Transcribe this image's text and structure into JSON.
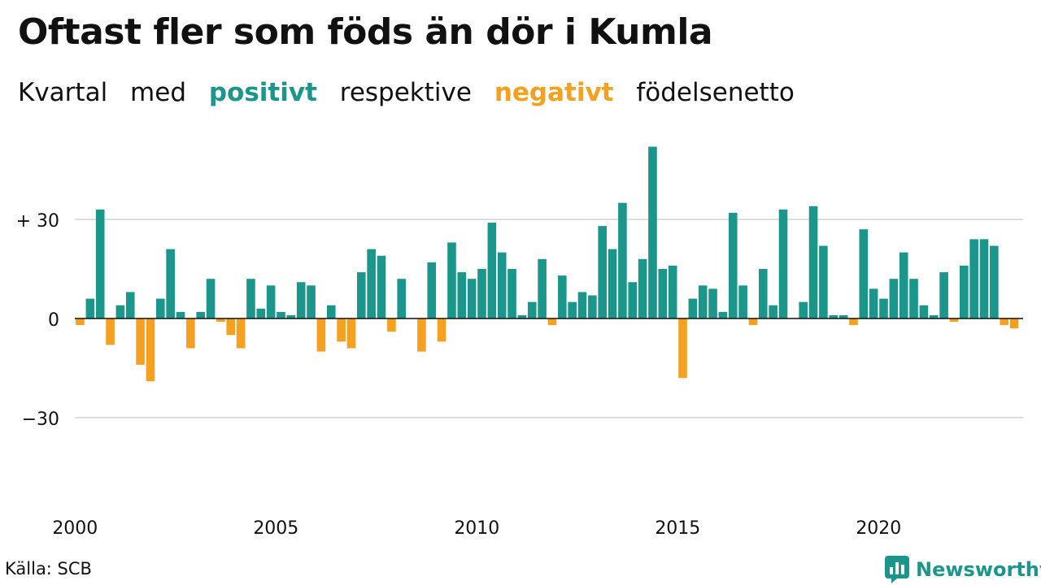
{
  "title": "Oftast fler som föds än dör i Kumla",
  "subtitle": {
    "w1": "Kvartal",
    "w2": "med",
    "w3": "positivt",
    "w4": "respektive",
    "w5": "negativt",
    "w6": "födelsenetto"
  },
  "source": "Källa: SCB",
  "brand": "Newsworthy",
  "colors": {
    "positive": "#1a968a",
    "negative": "#f5a01e",
    "grid": "#dddddd",
    "text": "#111111"
  },
  "chart_data": {
    "type": "bar",
    "start_year": 2000,
    "periods_per_year": 4,
    "ylim": [
      -40,
      50
    ],
    "y_ticks": [
      {
        "value": 30,
        "label": "+ 30"
      },
      {
        "value": 0,
        "label": "0"
      },
      {
        "value": -30,
        "label": "−30"
      }
    ],
    "x_tick_labels": [
      "2000",
      "2005",
      "2010",
      "2015",
      "2020"
    ],
    "values": [
      -2,
      6,
      33,
      -8,
      4,
      8,
      -14,
      -19,
      6,
      21,
      2,
      -9,
      2,
      12,
      -1,
      -5,
      -9,
      12,
      3,
      10,
      2,
      1,
      11,
      10,
      -10,
      4,
      -7,
      -9,
      14,
      21,
      19,
      -4,
      12,
      0,
      -10,
      17,
      -7,
      23,
      14,
      12,
      15,
      29,
      20,
      15,
      1,
      5,
      18,
      -2,
      13,
      5,
      8,
      7,
      28,
      21,
      35,
      11,
      18,
      52,
      15,
      16,
      -18,
      6,
      10,
      9,
      2,
      32,
      10,
      -2,
      15,
      4,
      33,
      0,
      5,
      34,
      22,
      1,
      1,
      -2,
      27,
      9,
      6,
      12,
      20,
      12,
      4,
      1,
      14,
      -1,
      16,
      24,
      24,
      22,
      -2,
      -3
    ]
  }
}
